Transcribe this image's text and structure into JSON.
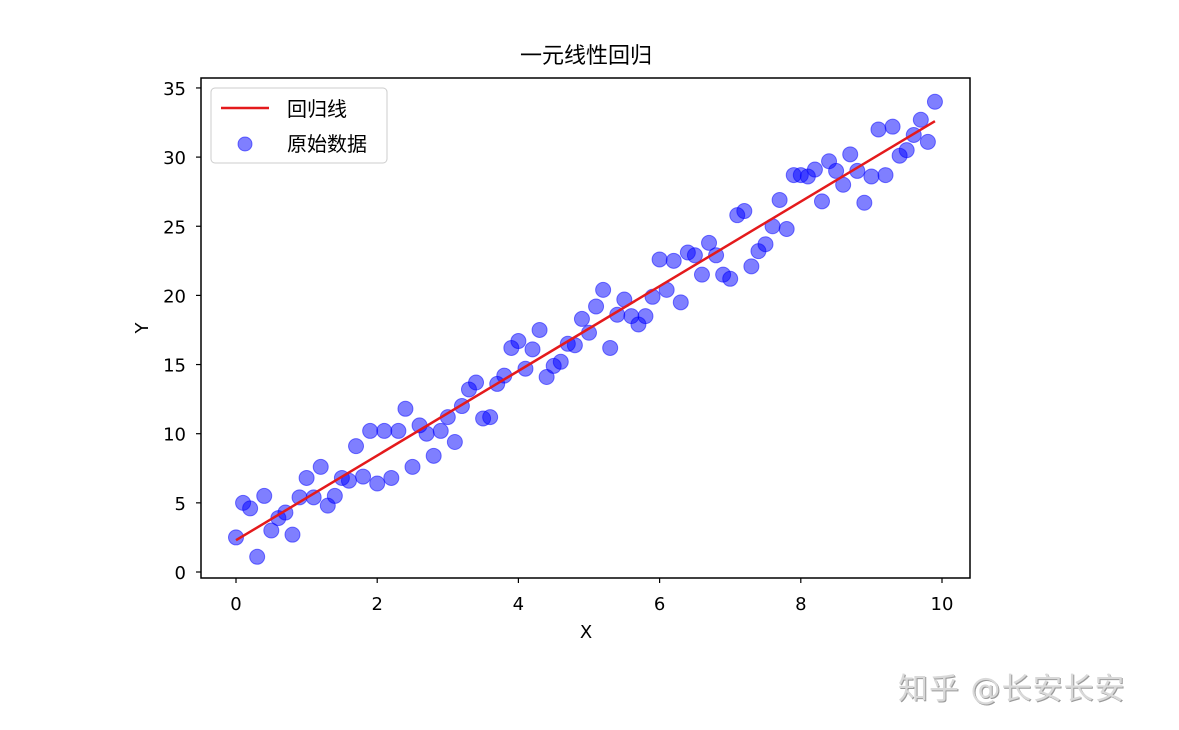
{
  "chart_data": {
    "type": "scatter",
    "title": "一元线性回归",
    "xlabel": "X",
    "ylabel": "Y",
    "xlim": [
      -0.5,
      10.4
    ],
    "ylim": [
      -0.5,
      35.7
    ],
    "xticks": [
      0,
      2,
      4,
      6,
      8,
      10
    ],
    "yticks": [
      0,
      5,
      10,
      15,
      20,
      25,
      30,
      35
    ],
    "grid": false,
    "legend_position": "upper left",
    "legend": [
      "回归线",
      "原始数据"
    ],
    "series": [
      {
        "name": "原始数据",
        "kind": "scatter",
        "color": "#0000ff",
        "alpha": 0.5,
        "x": [
          0.0,
          0.1,
          0.2,
          0.3,
          0.4,
          0.5,
          0.6,
          0.7,
          0.8,
          0.9,
          1.0,
          1.1,
          1.2,
          1.3,
          1.4,
          1.5,
          1.6,
          1.7,
          1.8,
          1.9,
          2.0,
          2.1,
          2.2,
          2.3,
          2.4,
          2.5,
          2.6,
          2.7,
          2.8,
          2.9,
          3.0,
          3.1,
          3.2,
          3.3,
          3.4,
          3.5,
          3.6,
          3.7,
          3.8,
          3.9,
          4.0,
          4.1,
          4.2,
          4.3,
          4.4,
          4.5,
          4.6,
          4.7,
          4.8,
          4.9,
          5.0,
          5.1,
          5.2,
          5.3,
          5.4,
          5.5,
          5.6,
          5.7,
          5.8,
          5.9,
          6.0,
          6.1,
          6.2,
          6.3,
          6.4,
          6.5,
          6.6,
          6.7,
          6.8,
          6.9,
          7.0,
          7.1,
          7.2,
          7.3,
          7.4,
          7.5,
          7.6,
          7.7,
          7.8,
          7.9,
          8.0,
          8.1,
          8.2,
          8.3,
          8.4,
          8.5,
          8.6,
          8.7,
          8.8,
          8.9,
          9.0,
          9.1,
          9.2,
          9.3,
          9.4,
          9.5,
          9.6,
          9.7,
          9.8,
          9.9
        ],
        "y": [
          2.5,
          5.0,
          4.6,
          1.1,
          5.5,
          3.0,
          3.9,
          4.3,
          2.7,
          5.4,
          6.8,
          5.4,
          7.6,
          4.8,
          5.5,
          6.8,
          6.6,
          9.1,
          6.9,
          10.2,
          6.4,
          10.2,
          6.8,
          10.2,
          11.8,
          7.6,
          10.6,
          10.0,
          8.4,
          10.2,
          11.2,
          9.4,
          12.0,
          13.2,
          13.7,
          11.1,
          11.2,
          13.6,
          14.2,
          16.2,
          16.7,
          14.7,
          16.1,
          17.5,
          14.1,
          14.9,
          15.2,
          16.5,
          16.4,
          18.3,
          17.3,
          19.2,
          20.4,
          16.2,
          18.6,
          19.7,
          18.5,
          17.9,
          18.5,
          19.9,
          22.6,
          20.4,
          22.5,
          19.5,
          23.1,
          22.9,
          21.5,
          23.8,
          22.9,
          21.5,
          21.2,
          25.8,
          26.1,
          22.1,
          23.2,
          23.7,
          25.0,
          26.9,
          24.8,
          28.7,
          28.7,
          28.6,
          29.1,
          26.8,
          29.7,
          29.0,
          28.0,
          30.2,
          29.0,
          26.7,
          28.6,
          32.0,
          28.7,
          32.2,
          30.1,
          30.5,
          31.6,
          32.7,
          31.1,
          34.0
        ]
      },
      {
        "name": "回归线",
        "kind": "line",
        "color": "#e41a1c",
        "x": [
          0.0,
          9.9
        ],
        "y": [
          2.3,
          32.6
        ]
      }
    ]
  },
  "watermark": "知乎 @长安长安"
}
